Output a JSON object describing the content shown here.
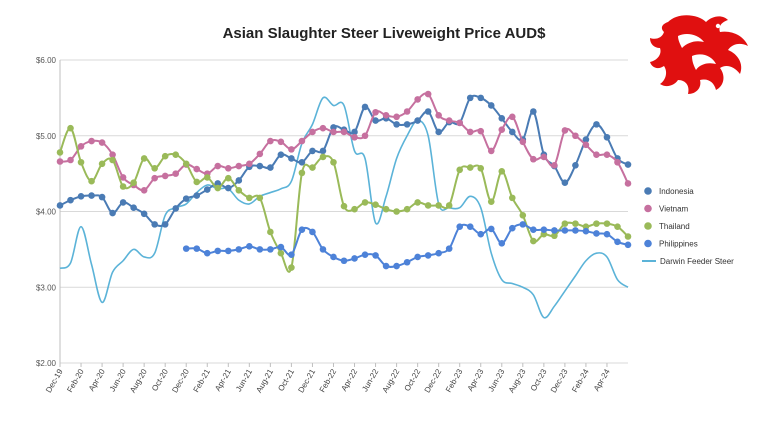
{
  "chart_data": {
    "type": "line",
    "title": "Asian Slaughter Steer Liveweight Price AUD$",
    "xlabel": "",
    "ylabel": "",
    "ylim": [
      2.0,
      6.0
    ],
    "y_ticks": [
      "$2.00",
      "$3.00",
      "$4.00",
      "$5.00",
      "$6.00"
    ],
    "y_tick_values": [
      2,
      3,
      4,
      5,
      6
    ],
    "grid": "horizontal",
    "legend_position": "right",
    "x_labels": [
      "Dec-19",
      "Feb-20",
      "Apr-20",
      "Jun-20",
      "Aug-20",
      "Oct-20",
      "Dec-20",
      "Feb-21",
      "Apr-21",
      "Jun-21",
      "Aug-21",
      "Oct-21",
      "Dec-21",
      "Feb-22",
      "Apr-22",
      "Jun-22",
      "Aug-22",
      "Oct-22",
      "Dec-22",
      "Feb-23",
      "Apr-23",
      "Jun-23",
      "Aug-23",
      "Oct-23",
      "Dec-23",
      "Feb-24",
      "Apr-24"
    ],
    "x": [
      "Dec-19",
      "Jan-20",
      "Feb-20",
      "Mar-20",
      "Apr-20",
      "May-20",
      "Jun-20",
      "Jul-20",
      "Aug-20",
      "Sep-20",
      "Oct-20",
      "Nov-20",
      "Dec-20",
      "Jan-21",
      "Feb-21",
      "Mar-21",
      "Apr-21",
      "May-21",
      "Jun-21",
      "Jul-21",
      "Aug-21",
      "Sep-21",
      "Oct-21",
      "Nov-21",
      "Dec-21",
      "Jan-22",
      "Feb-22",
      "Mar-22",
      "Apr-22",
      "May-22",
      "Jun-22",
      "Jul-22",
      "Aug-22",
      "Sep-22",
      "Oct-22",
      "Nov-22",
      "Dec-22",
      "Jan-23",
      "Feb-23",
      "Mar-23",
      "Apr-23",
      "May-23",
      "Jun-23",
      "Jul-23",
      "Aug-23",
      "Sep-23",
      "Oct-23",
      "Nov-23",
      "Dec-23",
      "Jan-24",
      "Feb-24",
      "Mar-24",
      "Apr-24",
      "May-24",
      "Jun-24"
    ],
    "series": [
      {
        "name": "Indonesia",
        "color": "#4a7bb4",
        "style": "line-markers",
        "values": [
          4.08,
          4.15,
          4.2,
          4.21,
          4.19,
          3.98,
          4.12,
          4.05,
          3.97,
          3.83,
          3.83,
          4.04,
          4.17,
          4.21,
          4.29,
          4.37,
          4.31,
          4.41,
          4.59,
          4.6,
          4.58,
          4.75,
          4.7,
          4.65,
          4.8,
          4.8,
          5.11,
          5.08,
          5.05,
          5.38,
          5.2,
          5.23,
          5.15,
          5.15,
          5.2,
          5.32,
          5.05,
          5.18,
          5.17,
          5.5,
          5.5,
          5.4,
          5.23,
          5.05,
          4.95,
          5.32,
          4.75,
          4.6,
          4.38,
          4.61,
          4.95,
          5.15,
          4.98,
          4.7,
          4.62
        ]
      },
      {
        "name": "Vietnam",
        "color": "#c6709f",
        "style": "line-markers",
        "values": [
          4.66,
          4.68,
          4.86,
          4.93,
          4.91,
          4.75,
          4.45,
          4.35,
          4.28,
          4.44,
          4.47,
          4.5,
          4.62,
          4.56,
          4.5,
          4.6,
          4.57,
          4.6,
          4.63,
          4.76,
          4.93,
          4.92,
          4.82,
          4.93,
          5.05,
          5.1,
          5.05,
          5.05,
          4.98,
          5.0,
          5.31,
          5.27,
          5.25,
          5.32,
          5.48,
          5.55,
          5.27,
          5.2,
          5.17,
          5.05,
          5.06,
          4.8,
          5.08,
          5.25,
          4.92,
          4.69,
          4.72,
          4.61,
          5.07,
          5.0,
          4.88,
          4.75,
          4.75,
          4.65,
          4.37
        ]
      },
      {
        "name": "Thailand",
        "color": "#9aba59",
        "style": "line-markers",
        "values": [
          4.78,
          5.1,
          4.65,
          4.4,
          4.63,
          4.68,
          4.33,
          4.38,
          4.7,
          4.57,
          4.73,
          4.75,
          4.63,
          4.39,
          4.45,
          4.31,
          4.44,
          4.28,
          4.18,
          4.18,
          3.73,
          3.45,
          3.26,
          4.51,
          4.58,
          4.72,
          4.65,
          4.07,
          4.03,
          4.12,
          4.09,
          4.03,
          4.0,
          4.03,
          4.12,
          4.08,
          4.08,
          4.08,
          4.55,
          4.58,
          4.57,
          4.13,
          4.53,
          4.18,
          3.95,
          3.61,
          3.7,
          3.68,
          3.84,
          3.84,
          3.8,
          3.84,
          3.84,
          3.8,
          3.67
        ]
      },
      {
        "name": "Philippines",
        "color": "#4d82d8",
        "style": "line-markers",
        "values": [
          null,
          null,
          null,
          null,
          null,
          null,
          null,
          null,
          null,
          null,
          null,
          null,
          3.51,
          3.51,
          3.45,
          3.48,
          3.48,
          3.5,
          3.54,
          3.5,
          3.5,
          3.53,
          3.43,
          3.76,
          3.73,
          3.5,
          3.4,
          3.35,
          3.38,
          3.43,
          3.42,
          3.28,
          3.28,
          3.33,
          3.4,
          3.42,
          3.45,
          3.51,
          3.8,
          3.8,
          3.7,
          3.77,
          3.58,
          3.78,
          3.83,
          3.76,
          3.76,
          3.75,
          3.75,
          3.75,
          3.74,
          3.71,
          3.7,
          3.6,
          3.56
        ]
      },
      {
        "name": "Darwin Feeder Steer",
        "color": "#5bb3d8",
        "style": "smooth-line",
        "values": [
          3.25,
          3.32,
          3.8,
          3.3,
          2.8,
          3.2,
          3.35,
          3.5,
          3.4,
          3.45,
          3.95,
          4.05,
          4.1,
          4.25,
          4.35,
          4.3,
          4.3,
          4.15,
          4.1,
          4.2,
          4.25,
          4.3,
          4.4,
          4.9,
          5.15,
          5.5,
          5.4,
          5.4,
          4.8,
          4.7,
          3.85,
          4.2,
          4.7,
          5.0,
          5.2,
          5.0,
          4.1,
          4.05,
          4.05,
          4.2,
          4.05,
          3.45,
          3.1,
          3.05,
          3.0,
          2.9,
          2.6,
          2.75,
          2.95,
          3.15,
          3.35,
          3.45,
          3.4,
          3.1,
          3.0
        ]
      }
    ]
  },
  "logo": {
    "icon": "red-dragon-icon",
    "color": "#e01010"
  }
}
